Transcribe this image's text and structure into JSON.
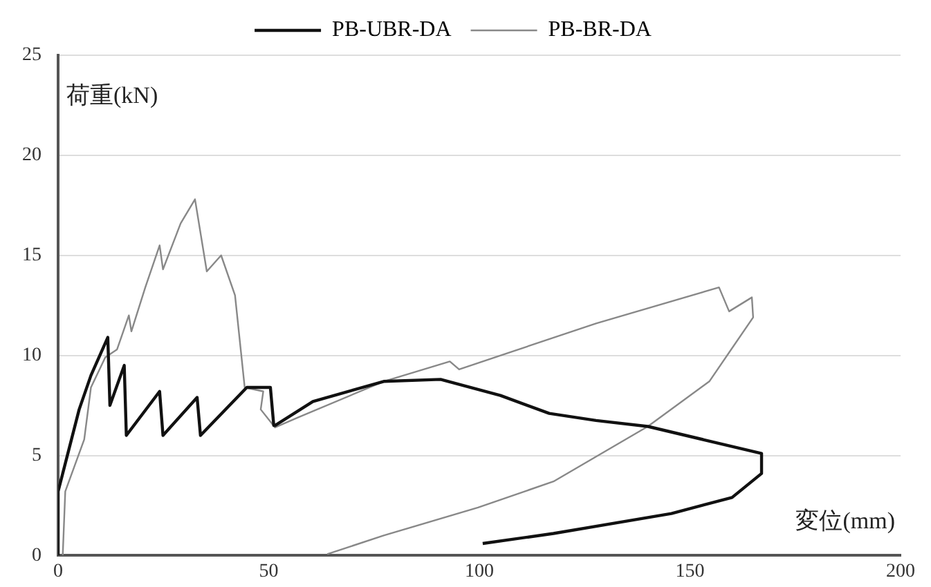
{
  "chart_data": {
    "type": "line",
    "xlabel": "変位(mm)",
    "ylabel": "荷重(kN)",
    "xlim": [
      0,
      200
    ],
    "xticks": [
      0,
      50,
      100,
      150,
      200
    ],
    "ylim": [
      0,
      25
    ],
    "yticks": [
      0,
      5,
      10,
      15,
      20,
      25
    ],
    "grid": "y",
    "legend": "top",
    "marker": "none",
    "line_style": "solid",
    "series": [
      {
        "name": "PB-UBR-DA",
        "color": "#111111",
        "x": [
          0,
          0,
          5,
          7.8,
          11.8,
          12.3,
          15.7,
          16.2,
          24.1,
          24.9,
          33,
          33.8,
          44.8,
          50.4,
          51.2,
          51.5,
          60.5,
          77.3,
          90.8,
          105,
          116.6,
          127.7,
          140,
          167,
          167,
          160,
          145.6,
          117.6,
          100.8
        ],
        "values": [
          0,
          3.2,
          7.3,
          9,
          10.9,
          7.5,
          9.5,
          6,
          8.2,
          6,
          7.9,
          6,
          8.4,
          8.4,
          6.5,
          6.5,
          7.7,
          8.7,
          8.8,
          8,
          7.1,
          6.75,
          6.45,
          5.1,
          4.1,
          2.9,
          2.1,
          1.1,
          0.6
        ]
      },
      {
        "name": "PB-BR-DA",
        "color": "#888888",
        "x": [
          1.1,
          1.7,
          6.2,
          7.8,
          11.2,
          14,
          16.8,
          17.4,
          20.7,
          24.1,
          24.9,
          29.1,
          32.5,
          35.3,
          38.7,
          42,
          44.3,
          48.7,
          48.1,
          51.5,
          57,
          77.3,
          93,
          95.2,
          127.7,
          156.9,
          159.3,
          164.7,
          165,
          154.6,
          140,
          117.6,
          99.7,
          77.3,
          63.9
        ],
        "values": [
          0,
          3.2,
          5.8,
          8.4,
          9.9,
          10.3,
          12,
          11.2,
          13.4,
          15.5,
          14.3,
          16.6,
          17.8,
          14.2,
          15,
          13,
          8.4,
          8.2,
          7.3,
          6.4,
          6.9,
          8.7,
          9.7,
          9.3,
          11.6,
          13.4,
          12.2,
          12.9,
          11.9,
          8.7,
          6.45,
          3.7,
          2.4,
          1,
          0.07
        ]
      }
    ]
  }
}
